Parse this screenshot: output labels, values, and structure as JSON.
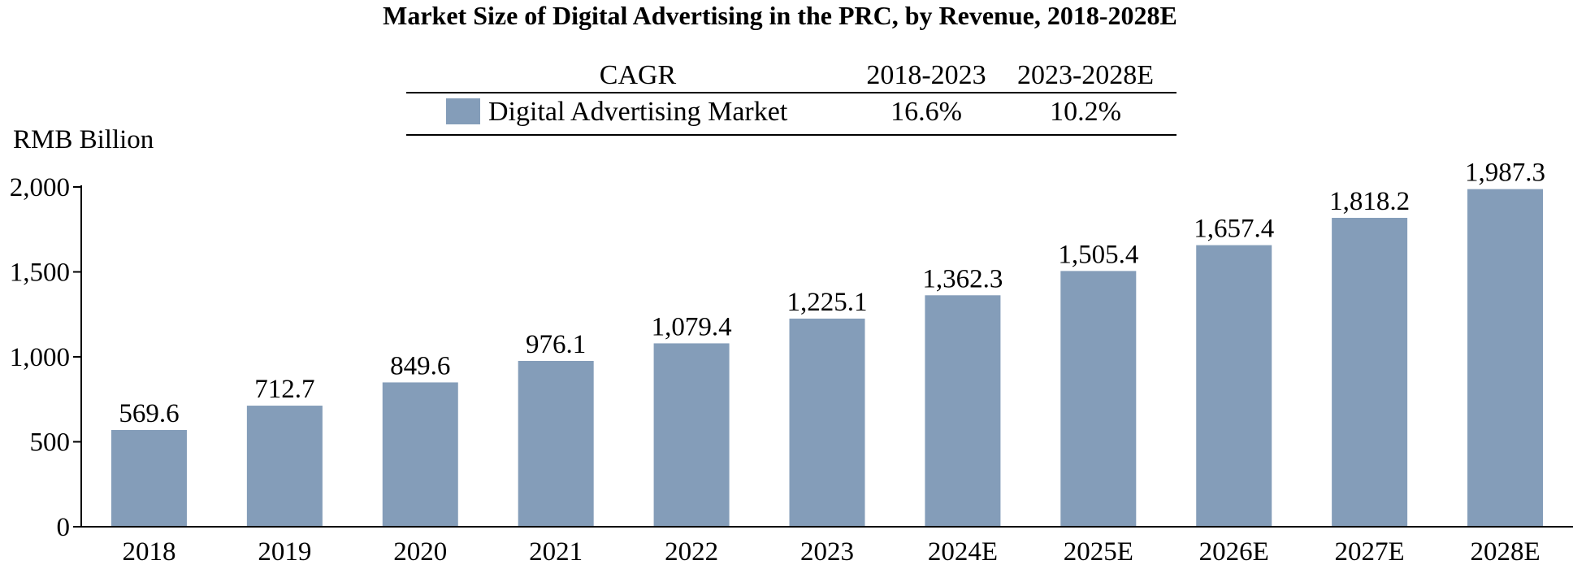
{
  "chart_data": {
    "type": "bar",
    "title": "Market Size of Digital Advertising in the PRC, by Revenue, 2018-2028E",
    "ylabel": "RMB Billion",
    "xlabel": "",
    "ylim": [
      0,
      2000
    ],
    "yticks": [
      0,
      500,
      1000,
      1500,
      2000
    ],
    "ytick_labels": [
      "0",
      "500",
      "1,000",
      "1,500",
      "2,000"
    ],
    "grid": false,
    "legend_position": "top-center",
    "categories": [
      "2018",
      "2019",
      "2020",
      "2021",
      "2022",
      "2023",
      "2024E",
      "2025E",
      "2026E",
      "2027E",
      "2028E"
    ],
    "series": [
      {
        "name": "Digital Advertising Market",
        "color": "#849db9",
        "values": [
          569.6,
          712.7,
          849.6,
          976.1,
          1079.4,
          1225.1,
          1362.3,
          1505.4,
          1657.4,
          1818.2,
          1987.3
        ],
        "labels": [
          "569.6",
          "712.7",
          "849.6",
          "976.1",
          "1,079.4",
          "1,225.1",
          "1,362.3",
          "1,505.4",
          "1,657.4",
          "1,818.2",
          "1,987.3"
        ]
      }
    ],
    "cagr_table": {
      "header": [
        "CAGR",
        "2018-2023",
        "2023-2028E"
      ],
      "rows": [
        {
          "label": "Digital Advertising Market",
          "values": [
            "16.6%",
            "10.2%"
          ]
        }
      ]
    }
  }
}
